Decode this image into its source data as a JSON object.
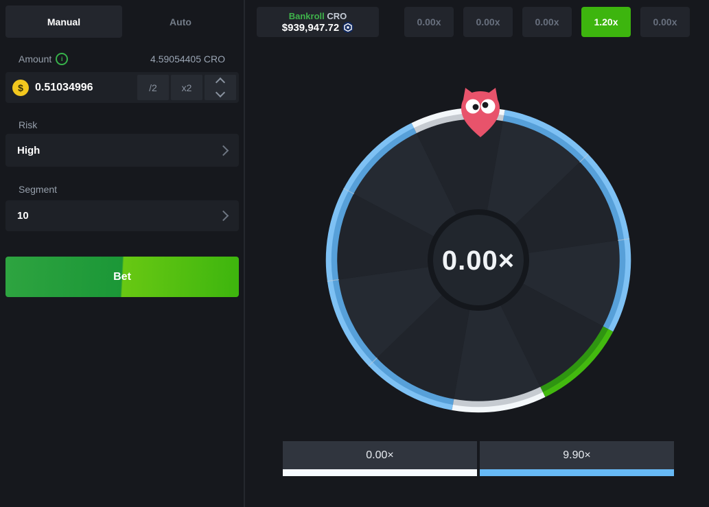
{
  "bet_panel": {
    "tabs": {
      "manual": "Manual",
      "auto": "Auto"
    },
    "amount": {
      "label": "Amount",
      "value": "0.51034996",
      "converted": "4.59054405 CRO",
      "half_label": "/2",
      "double_label": "x2"
    },
    "risk": {
      "label": "Risk",
      "value": "High"
    },
    "segment": {
      "label": "Segment",
      "value": "10"
    },
    "bet_label": "Bet"
  },
  "header": {
    "bankroll": {
      "label": "Bankroll",
      "currency": "CRO",
      "value": "$939,947.72"
    },
    "history": [
      {
        "label": "0.00x",
        "highlight": false
      },
      {
        "label": "0.00x",
        "highlight": false
      },
      {
        "label": "0.00x",
        "highlight": false
      },
      {
        "label": "1.20x",
        "highlight": true
      },
      {
        "label": "0.00x",
        "highlight": false
      }
    ]
  },
  "wheel": {
    "result": "0.00×",
    "angle_offset": 10,
    "segments": [
      "blue",
      "blue",
      "blue",
      "green",
      "white",
      "blue",
      "blue",
      "blue",
      "blue",
      "white"
    ],
    "palette": {
      "blue": {
        "outer": "#7ec1f4",
        "inner": "#57a0d9"
      },
      "green": {
        "outer": "#43b90f",
        "inner": "#2f9511"
      },
      "white": {
        "outer": "#f3f7fa",
        "inner": "#c6cbd1"
      }
    },
    "wedge_shades": [
      "#252a32",
      "#20242b"
    ],
    "colors": {
      "center_border": "#14171c",
      "center_bg": "#21262d",
      "gap_notch": "#cfd6dd",
      "owl": "#e8536b",
      "pupil": "#17191d"
    }
  },
  "legend": [
    {
      "label": "0.00×",
      "color": "#f7fbff"
    },
    {
      "label": "9.90×",
      "color": "#67b9f5"
    }
  ],
  "colors": {
    "accent_green": "#3db50e",
    "bankroll_green": "#3fb34b",
    "coin_yellow": "#f2c71e",
    "cro_navy": "#11295e"
  }
}
